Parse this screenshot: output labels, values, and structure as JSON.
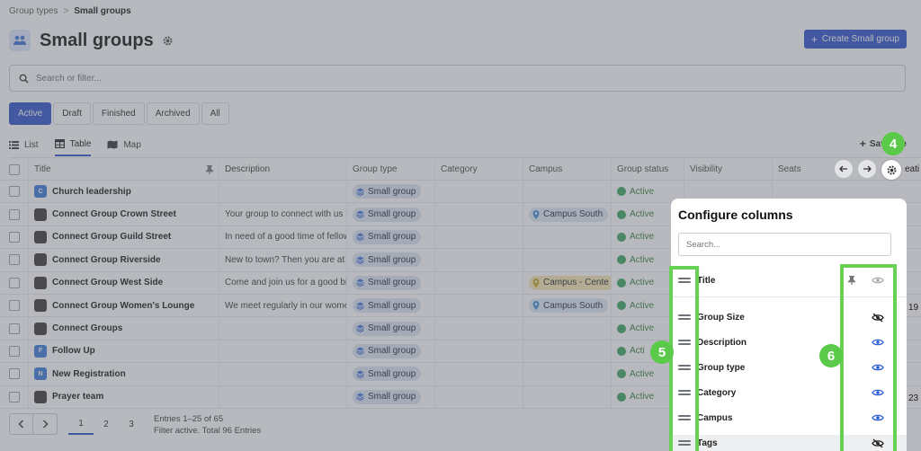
{
  "breadcrumb": {
    "parent": "Group types",
    "separator": ">",
    "current": "Small groups"
  },
  "header": {
    "title": "Small groups",
    "create_button": "Create Small group"
  },
  "search": {
    "placeholder": "Search or filter..."
  },
  "status_tabs": [
    "Active",
    "Draft",
    "Finished",
    "Archived",
    "All"
  ],
  "view_tabs": [
    "List",
    "Table",
    "Map"
  ],
  "save_view": "Save the",
  "columns": {
    "title": "Title",
    "description": "Description",
    "group_type": "Group type",
    "category": "Category",
    "campus": "Campus",
    "group_status": "Group status",
    "visibility": "Visibility",
    "seats": "Seats"
  },
  "rows": [
    {
      "avatar": "C",
      "title": "Church leadership",
      "description": "",
      "group_type": "Small group",
      "campus": "",
      "status": "Active"
    },
    {
      "avatar": "",
      "title": "Connect Group Crown Street",
      "description": "Your group to connect with us F",
      "group_type": "Small group",
      "campus": "Campus South",
      "status": "Active"
    },
    {
      "avatar": "",
      "title": "Connect Group Guild Street",
      "description": "In need of a good time of fellows",
      "group_type": "Small group",
      "campus": "",
      "status": "Active"
    },
    {
      "avatar": "",
      "title": "Connect Group Riverside",
      "description": "New to town? Then you are at th",
      "group_type": "Small group",
      "campus": "",
      "status": "Active"
    },
    {
      "avatar": "",
      "title": "Connect Group West Side",
      "description": "Come and join us for a good bib",
      "group_type": "Small group",
      "campus": "Campus - Cente",
      "status": "Active"
    },
    {
      "avatar": "",
      "title": "Connect Group Women's Lounge",
      "description": "We meet regularly in our wome",
      "group_type": "Small group",
      "campus": "Campus South",
      "status": "Active"
    },
    {
      "avatar": "",
      "title": "Connect Groups",
      "description": "",
      "group_type": "Small group",
      "campus": "",
      "status": "Active"
    },
    {
      "avatar": "F",
      "title": "Follow Up",
      "description": "",
      "group_type": "Small group",
      "campus": "",
      "status": "Acti"
    },
    {
      "avatar": "N",
      "title": "New Registration",
      "description": "",
      "group_type": "Small group",
      "campus": "",
      "status": "Active"
    },
    {
      "avatar": "",
      "title": "Prayer team",
      "description": "",
      "group_type": "Small group",
      "campus": "",
      "status": "Active"
    }
  ],
  "pagination": {
    "pages": [
      "1",
      "2",
      "3"
    ],
    "current": "1",
    "entries": "Entries 1–25 of 65",
    "filter_note": "Filter active. Total 96 Entries"
  },
  "right_edge": {
    "header": "eati",
    "row6": "19",
    "row10": "23"
  },
  "config_panel": {
    "title": "Configure columns",
    "search_placeholder": "Search...",
    "items": [
      {
        "label": "Title",
        "visible": true,
        "pinned": true
      },
      {
        "label": "Group Size",
        "visible": false
      },
      {
        "label": "Description",
        "visible": true
      },
      {
        "label": "Group type",
        "visible": true
      },
      {
        "label": "Category",
        "visible": true
      },
      {
        "label": "Campus",
        "visible": true
      },
      {
        "label": "Tags",
        "visible": false
      }
    ]
  },
  "callouts": [
    "4",
    "5",
    "6"
  ],
  "colors": {
    "accent": "#2b4fc9",
    "callout": "#5bc94a",
    "active_status": "#3aa45b",
    "visible_eye": "#2b5fd9"
  }
}
